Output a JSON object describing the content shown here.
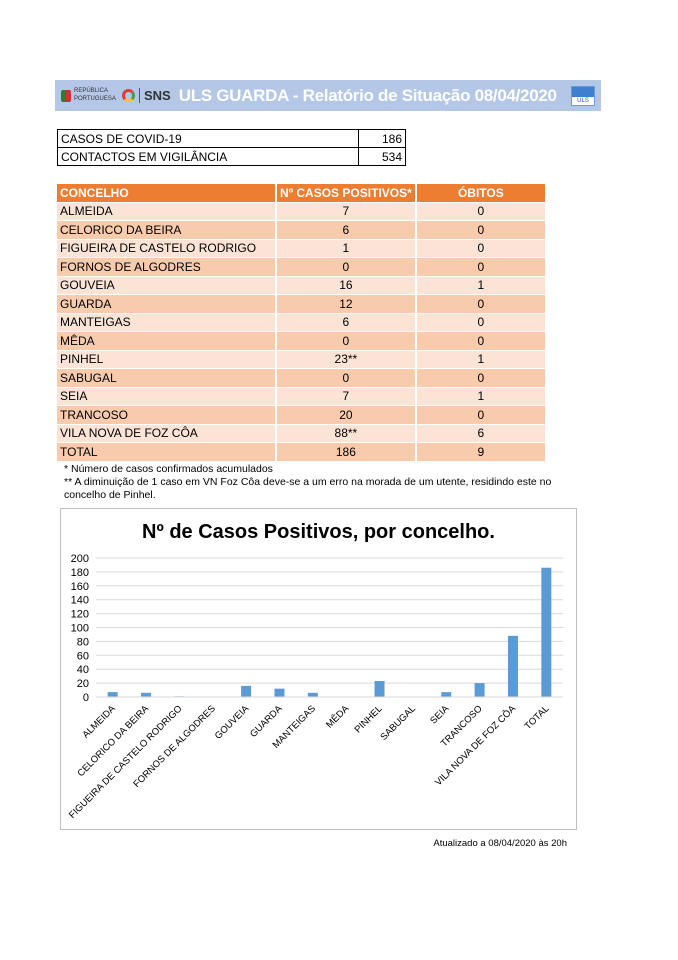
{
  "header": {
    "republica_logo_text": "REPÚBLICA PORTUGUESA",
    "sns_label": "SNS",
    "title": "ULS GUARDA - Relatório de Situação 08/04/2020",
    "uls_logo_text": "ULS",
    "bg_color": "#b4c7e7"
  },
  "summary": [
    {
      "label": "CASOS DE COVID-19",
      "value": "186"
    },
    {
      "label": "CONTACTOS EM VIGILÂNCIA",
      "value": "534"
    }
  ],
  "table": {
    "headers": [
      "CONCELHO",
      "Nº CASOS POSITIVOS*",
      "ÓBITOS"
    ],
    "rows": [
      [
        "ALMEIDA",
        "7",
        "0"
      ],
      [
        "CELORICO DA BEIRA",
        "6",
        "0"
      ],
      [
        "FIGUEIRA DE CASTELO RODRIGO",
        "1",
        "0"
      ],
      [
        "FORNOS DE ALGODRES",
        "0",
        "0"
      ],
      [
        "GOUVEIA",
        "16",
        "1"
      ],
      [
        "GUARDA",
        "12",
        "0"
      ],
      [
        "MANTEIGAS",
        "6",
        "0"
      ],
      [
        "MÊDA",
        "0",
        "0"
      ],
      [
        "PINHEL",
        "23**",
        "1"
      ],
      [
        "SABUGAL",
        "0",
        "0"
      ],
      [
        "SEIA",
        "7",
        "1"
      ],
      [
        "TRANCOSO",
        "20",
        "0"
      ],
      [
        "VILA NOVA DE FOZ CÔA",
        "88**",
        "6"
      ],
      [
        "TOTAL",
        "186",
        "9"
      ]
    ],
    "header_color": "#ed7d31"
  },
  "notes": [
    "* Número de casos confirmados acumulados",
    "** A diminuição de 1 caso em VN Foz Côa deve-se a um erro na morada de um utente, residindo este no concelho de Pinhel."
  ],
  "chart_data": {
    "type": "bar",
    "title": "Nº de Casos Positivos, por concelho.",
    "categories": [
      "ALMEIDA",
      "CELORICO DA BEIRA",
      "FIGUEIRA DE CASTELO RODRIGO",
      "FORNOS DE ALGODRES",
      "GOUVEIA",
      "GUARDA",
      "MANTEIGAS",
      "MÊDA",
      "PINHEL",
      "SABUGAL",
      "SEIA",
      "TRANCOSO",
      "VILA NOVA DE FOZ CÔA",
      "TOTAL"
    ],
    "values": [
      7,
      6,
      1,
      0,
      16,
      12,
      6,
      0,
      23,
      0,
      7,
      20,
      88,
      186
    ],
    "ylim": [
      0,
      200
    ],
    "yticks": [
      0,
      20,
      40,
      60,
      80,
      100,
      120,
      140,
      160,
      180,
      200
    ],
    "grid": true,
    "legend": "none",
    "bar_color": "#5b9bd5"
  },
  "footer": {
    "updated": "Atualizado a 08/04/2020 às 20h"
  }
}
